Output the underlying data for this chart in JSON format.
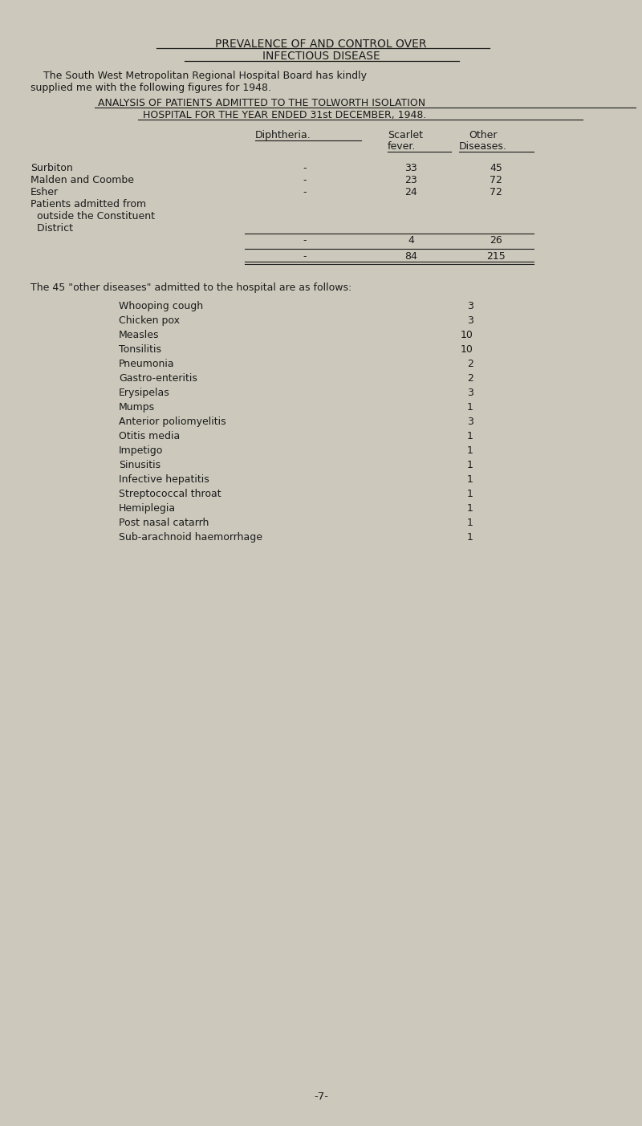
{
  "bg_color": "#ccc9bc",
  "text_color": "#1a1a1a",
  "title1": "PREVALENCE OF AND CONTROL OVER",
  "title2": "INFECTIOUS DISEASE",
  "intro_line1": "    The South West Metropolitan Regional Hospital Board has kindly",
  "intro_line2": "supplied me with the following figures for 1948.",
  "analysis_title1": "ANALYSIS OF PATIENTS ADMITTED TO THE TOLWORTH ISOLATION",
  "analysis_title2": "HOSPITAL FOR THE YEAR ENDED 31st DECEMBER, 1948.",
  "col_header1a": "Diphtheria.",
  "col_header2a": "Scarlet",
  "col_header2b": "fever.",
  "col_header3a": "Other",
  "col_header3b": "Diseases.",
  "row_labels": [
    "Surbiton",
    "Malden and Coombe",
    "Esher",
    "Patients admitted from",
    "  outside the Constituent",
    "  District",
    "",
    ""
  ],
  "row_diphtheria": [
    "-",
    "-",
    "-",
    "",
    "",
    "-",
    "",
    "-"
  ],
  "row_scarlet": [
    "33",
    "23",
    "24",
    "",
    "",
    "4",
    "",
    "84"
  ],
  "row_other": [
    "45",
    "72",
    "72",
    "",
    "",
    "26",
    "",
    "215"
  ],
  "other_diseases_intro": "The 45 \"other diseases\" admitted to the hospital are as follows:",
  "other_diseases": [
    [
      "Whooping cough",
      "3"
    ],
    [
      "Chicken pox",
      "3"
    ],
    [
      "Measles",
      "10"
    ],
    [
      "Tonsilitis",
      "10"
    ],
    [
      "Pneumonia",
      "2"
    ],
    [
      "Gastro-enteritis",
      "2"
    ],
    [
      "Erysipelas",
      "3"
    ],
    [
      "Mumps",
      "1"
    ],
    [
      "Anterior poliomyelitis",
      "3"
    ],
    [
      "Otitis media",
      "1"
    ],
    [
      "Impetigo",
      "1"
    ],
    [
      "Sinusitis",
      "1"
    ],
    [
      "Infective hepatitis",
      "1"
    ],
    [
      "Streptococcal throat",
      "1"
    ],
    [
      "Hemiplegia",
      "1"
    ],
    [
      "Post nasal catarrh",
      "1"
    ],
    [
      "Sub-arachnoid haemorrhage",
      "1"
    ]
  ],
  "page_number": "-7-",
  "fig_width": 8.0,
  "fig_height": 14.03,
  "dpi": 100
}
